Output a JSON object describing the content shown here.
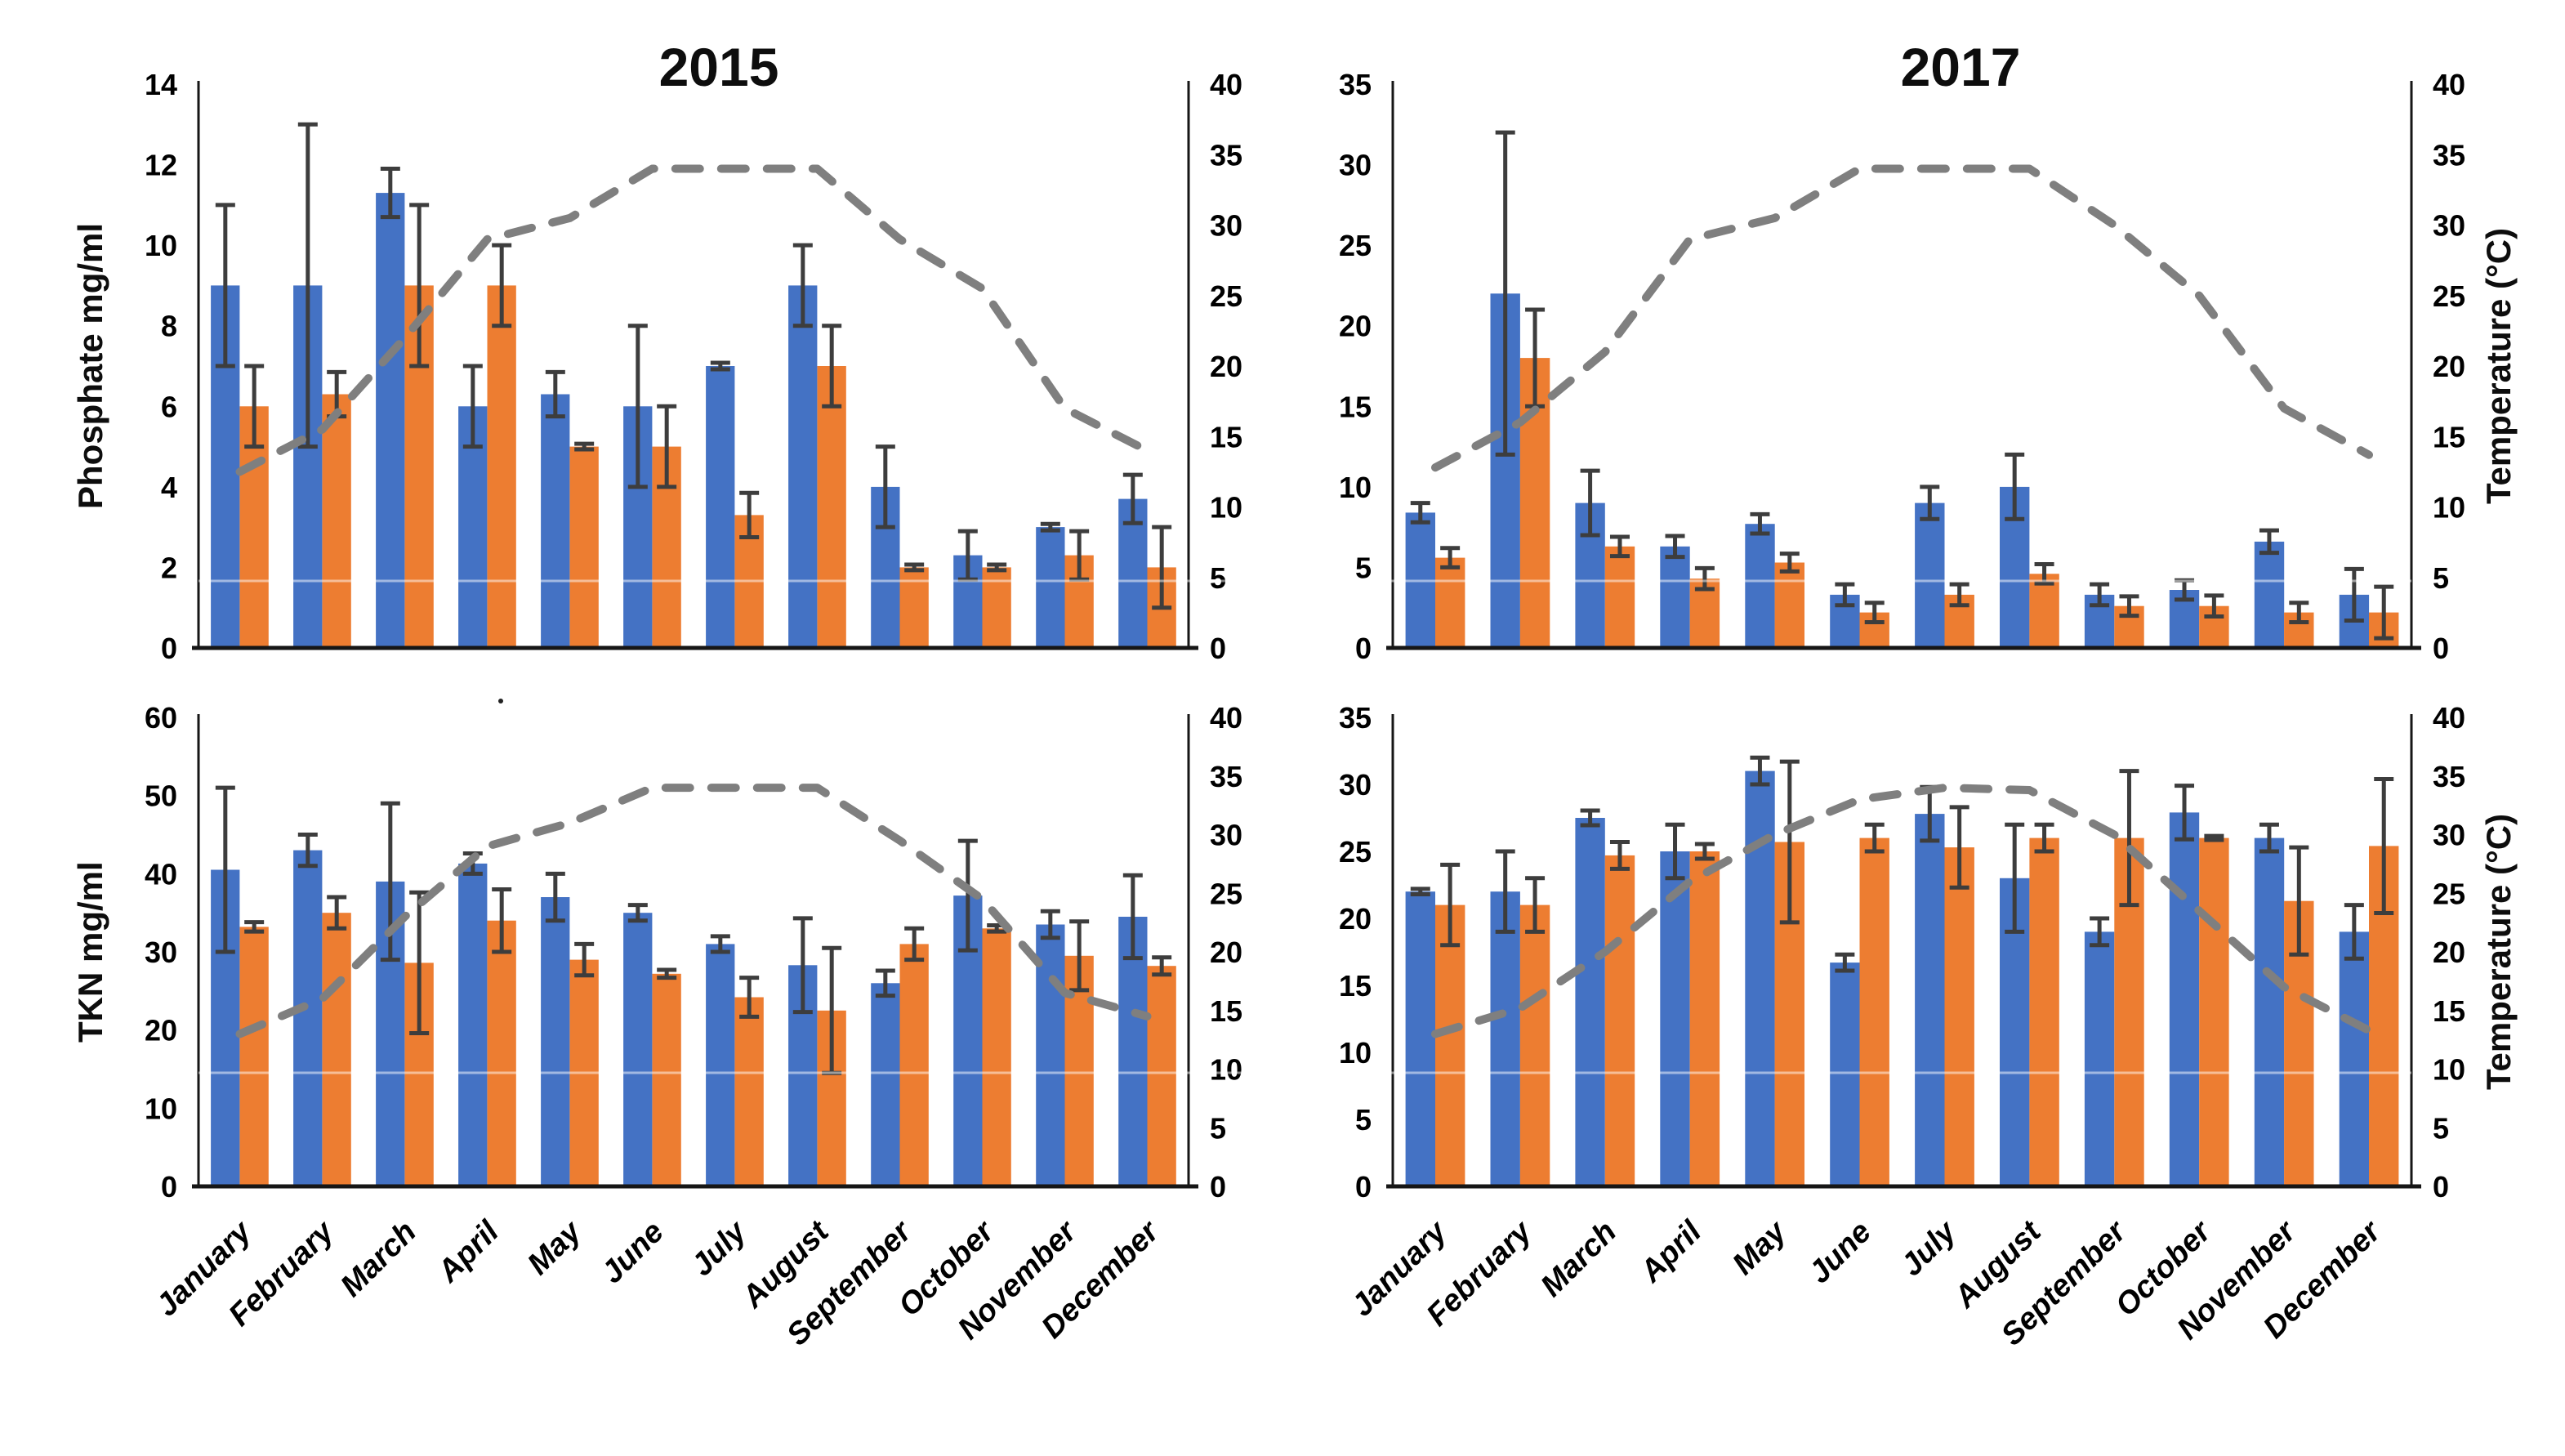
{
  "page": {
    "background": "#ffffff"
  },
  "colors": {
    "bar_blue": "#4472C4",
    "bar_orange": "#ED7D31",
    "temperature_line": "#7F7F7F",
    "error_bar": "#3D3D3D",
    "axis": "#161616"
  },
  "months": [
    "January",
    "February",
    "March",
    "April",
    "May",
    "June",
    "July",
    "August",
    "September",
    "October",
    "November",
    "December"
  ],
  "chart_data": [
    {
      "id": "phosphate-2015",
      "type": "bar",
      "title": "2015",
      "y_left_label": "Phosphate mg/ml",
      "y_right_label": "",
      "left_axis": {
        "min": 0,
        "max": 14,
        "step": 2
      },
      "right_axis": {
        "min": 0,
        "max": 40,
        "step": 5
      },
      "show_month_labels": false,
      "legend": "none",
      "series": [
        {
          "name": "blue",
          "color": "#4472C4",
          "values": [
            9,
            9,
            11.3,
            6,
            6.3,
            6,
            7,
            9,
            4,
            2.3,
            3,
            3.7
          ],
          "errors": [
            2,
            4,
            0.6,
            1,
            0.55,
            2,
            0.08,
            1,
            1,
            0.6,
            0.08,
            0.6
          ]
        },
        {
          "name": "orange",
          "color": "#ED7D31",
          "values": [
            6,
            6.3,
            9,
            9,
            5,
            5,
            3.3,
            7,
            2,
            2,
            2.3,
            2
          ],
          "errors": [
            1,
            0.55,
            2,
            1,
            0.07,
            1,
            0.55,
            1,
            0.07,
            0.07,
            0.6,
            1
          ]
        }
      ],
      "temperature": [
        12.5,
        15.5,
        22,
        29,
        30.5,
        34,
        34,
        34,
        29,
        25.5,
        17,
        14
      ]
    },
    {
      "id": "phosphate-2017",
      "type": "bar",
      "title": "2017",
      "y_left_label": "",
      "y_right_label": "Temperature (°C)",
      "left_axis": {
        "min": 0,
        "max": 35,
        "step": 5
      },
      "right_axis": {
        "min": 0,
        "max": 40,
        "step": 5
      },
      "show_month_labels": false,
      "legend": "none",
      "series": [
        {
          "name": "blue",
          "color": "#4472C4",
          "values": [
            8.4,
            22,
            9,
            6.3,
            7.7,
            3.3,
            9,
            10,
            3.3,
            3.6,
            6.6,
            3.3
          ],
          "errors": [
            0.6,
            10,
            2,
            0.65,
            0.6,
            0.65,
            1,
            2,
            0.65,
            0.6,
            0.7,
            1.6
          ]
        },
        {
          "name": "orange",
          "color": "#ED7D31",
          "values": [
            5.6,
            18,
            6.3,
            4.3,
            5.3,
            2.2,
            3.3,
            4.6,
            2.6,
            2.6,
            2.2,
            2.2
          ],
          "errors": [
            0.6,
            3,
            0.6,
            0.65,
            0.55,
            0.6,
            0.65,
            0.6,
            0.6,
            0.65,
            0.6,
            1.6
          ]
        }
      ],
      "temperature": [
        12.8,
        16,
        21,
        29,
        30.5,
        34,
        34,
        34,
        30,
        25,
        17,
        13.7
      ]
    },
    {
      "id": "tkn-2015",
      "type": "bar",
      "title": "",
      "y_left_label": "TKN mg/ml",
      "y_right_label": "",
      "left_axis": {
        "min": 0,
        "max": 60,
        "step": 10
      },
      "right_axis": {
        "min": 0,
        "max": 40,
        "step": 5
      },
      "show_month_labels": true,
      "legend": "none",
      "series": [
        {
          "name": "blue",
          "color": "#4472C4",
          "values": [
            40.5,
            43,
            39,
            41.3,
            37,
            35,
            31,
            28.3,
            26,
            37.2,
            33.5,
            34.5
          ],
          "errors": [
            10.5,
            2,
            10,
            1.3,
            3,
            1,
            1,
            6,
            1.6,
            7,
            1.7,
            5.3
          ]
        },
        {
          "name": "orange",
          "color": "#ED7D31",
          "values": [
            33.2,
            35,
            28.6,
            34,
            29,
            27.2,
            24.2,
            22.5,
            31,
            33,
            29.5,
            28.2
          ],
          "errors": [
            0.6,
            2,
            9,
            4,
            2,
            0.5,
            2.5,
            8,
            2,
            0.4,
            4.4,
            1.1
          ]
        }
      ],
      "temperature": [
        13,
        16,
        23,
        29,
        31,
        34,
        34,
        34,
        29.5,
        24.5,
        16.5,
        14.5
      ]
    },
    {
      "id": "tkn-2017",
      "type": "bar",
      "title": "",
      "y_left_label": "",
      "y_right_label": "Temperature (°C)",
      "left_axis": {
        "min": 0,
        "max": 35,
        "step": 5
      },
      "right_axis": {
        "min": 0,
        "max": 40,
        "step": 5
      },
      "show_month_labels": true,
      "legend": "none",
      "series": [
        {
          "name": "blue",
          "color": "#4472C4",
          "values": [
            22,
            22,
            27.5,
            25,
            31,
            16.7,
            27.8,
            23,
            19,
            27.9,
            26,
            19
          ],
          "errors": [
            0.2,
            3,
            0.55,
            2,
            1,
            0.6,
            2,
            4,
            1,
            2,
            1,
            2
          ]
        },
        {
          "name": "orange",
          "color": "#ED7D31",
          "values": [
            21,
            21,
            24.7,
            25,
            25.7,
            26,
            25.3,
            26,
            26,
            26,
            21.3,
            25.4
          ],
          "errors": [
            3,
            2,
            1,
            0.55,
            6,
            1,
            3,
            1,
            5,
            0.15,
            4,
            5
          ]
        }
      ],
      "temperature": [
        13,
        15.2,
        20,
        26,
        30,
        33,
        34,
        33.8,
        30,
        23.5,
        17,
        13.3
      ]
    }
  ]
}
